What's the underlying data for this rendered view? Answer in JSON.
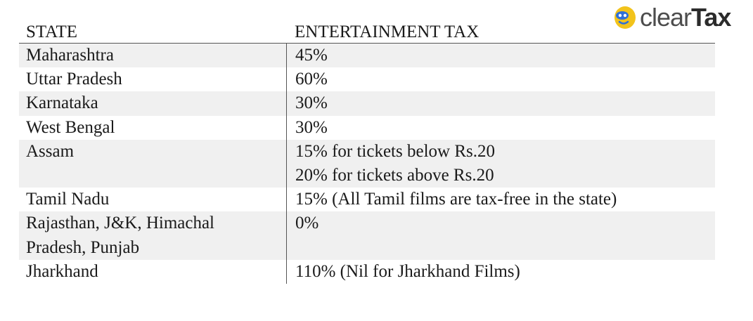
{
  "logo": {
    "brand_light": "clear",
    "brand_bold": "Tax",
    "icon": "cleartax-face-icon",
    "icon_color": "#f2c31b",
    "icon_accent": "#2e6fd8"
  },
  "table": {
    "headers": [
      "STATE",
      "ENTERTAINMENT TAX"
    ],
    "rows": [
      {
        "state": [
          "Maharashtra"
        ],
        "tax": [
          "45%"
        ]
      },
      {
        "state": [
          "Uttar Pradesh"
        ],
        "tax": [
          "60%"
        ]
      },
      {
        "state": [
          "Karnataka"
        ],
        "tax": [
          "30%"
        ]
      },
      {
        "state": [
          "West Bengal"
        ],
        "tax": [
          "30%"
        ]
      },
      {
        "state": [
          "Assam"
        ],
        "tax": [
          "15% for tickets below Rs.20",
          "20% for tickets above Rs.20"
        ]
      },
      {
        "state": [
          "Tamil Nadu"
        ],
        "tax": [
          "15% (All Tamil films are tax-free in the state)"
        ]
      },
      {
        "state": [
          "Rajasthan, J&K, Himachal",
          "Pradesh, Punjab"
        ],
        "tax": [
          "0%"
        ]
      },
      {
        "state": [
          "Jharkhand"
        ],
        "tax": [
          "110% (Nil for Jharkhand Films)"
        ]
      }
    ]
  }
}
